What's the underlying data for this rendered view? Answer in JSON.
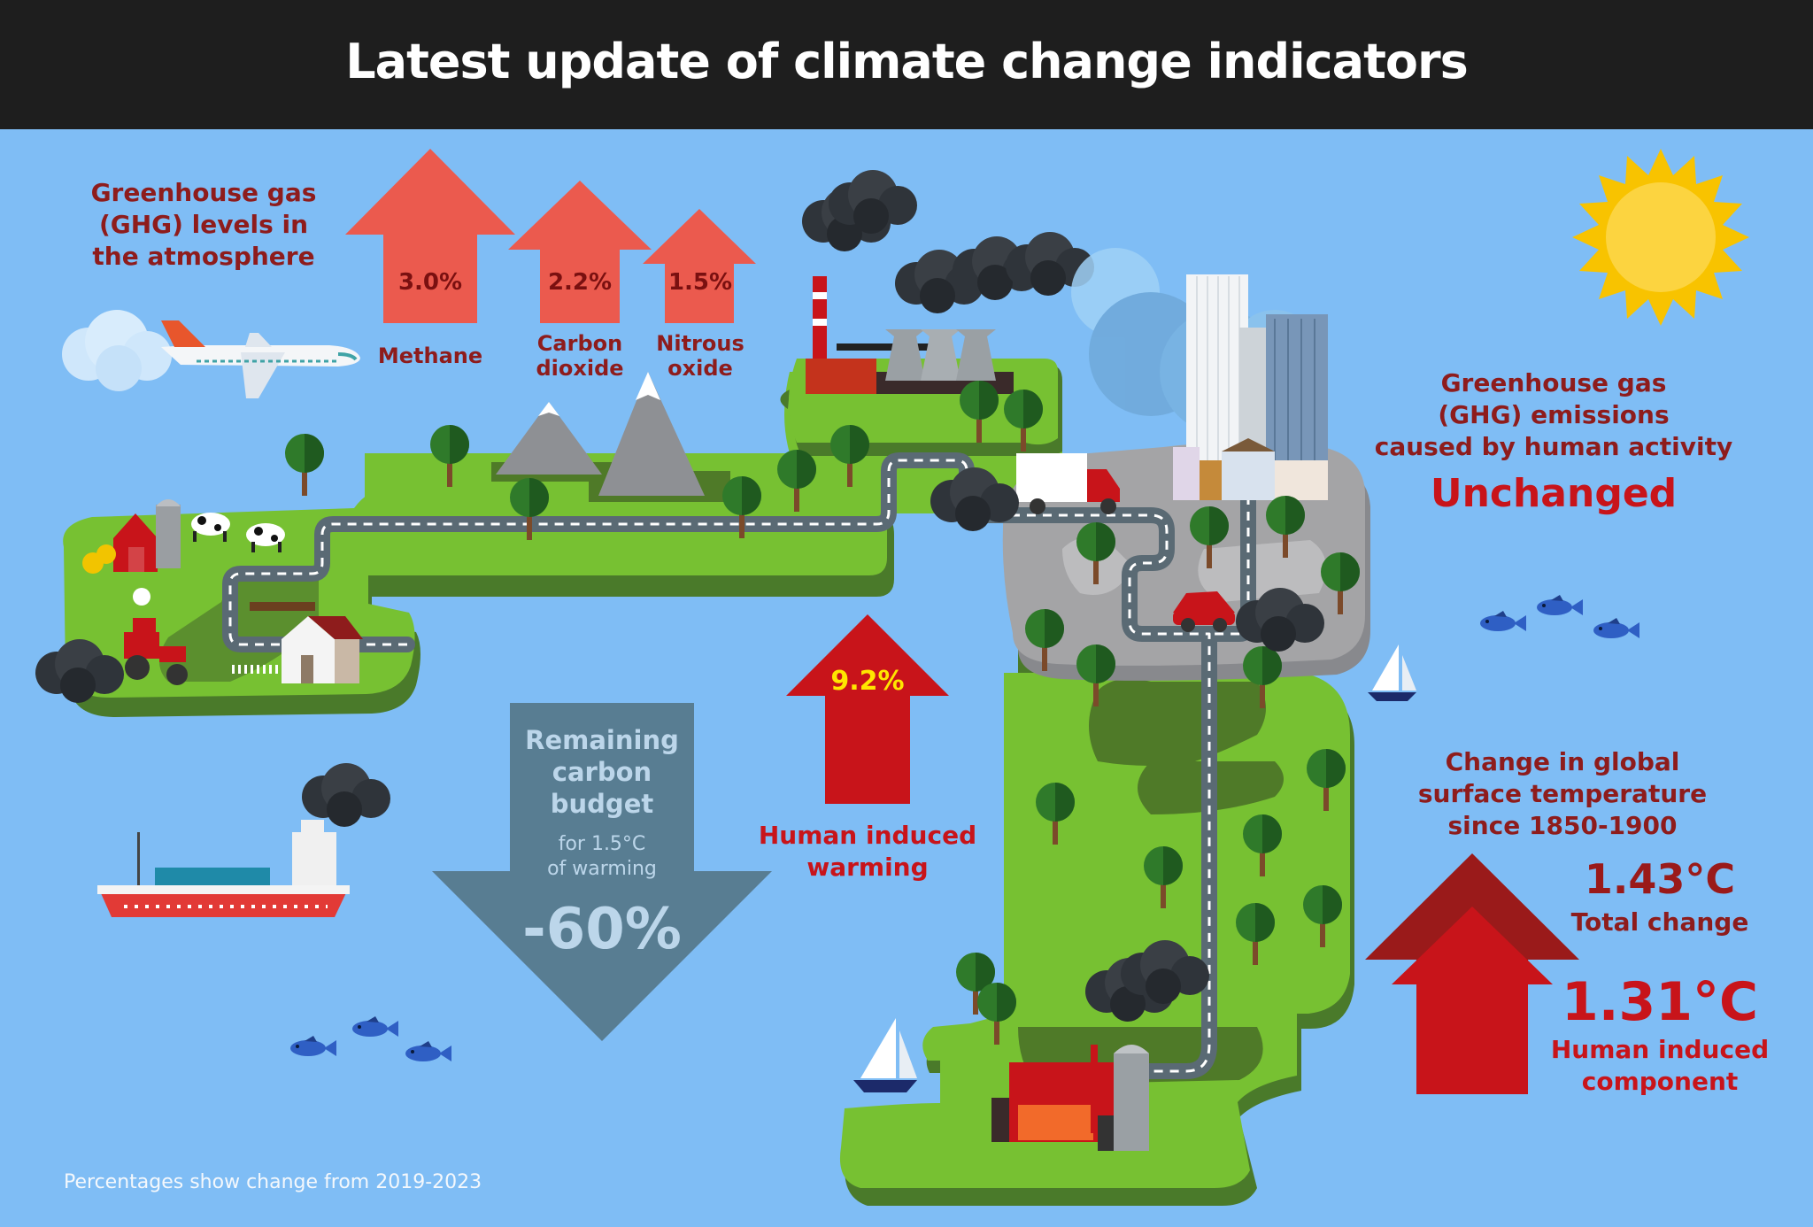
{
  "header": {
    "title": "Latest update of climate change indicators"
  },
  "ghg_levels": {
    "title": "Greenhouse gas\n(GHG) levels in\nthe atmosphere",
    "gases": [
      {
        "name": "Methane",
        "change": "3.0%"
      },
      {
        "name": "Carbon\ndioxide",
        "change": "2.2%"
      },
      {
        "name": "Nitrous\noxide",
        "change": "1.5%"
      }
    ]
  },
  "ghg_emissions": {
    "title": "Greenhouse gas\n(GHG) emissions\ncaused by human activity",
    "status": "Unchanged"
  },
  "carbon_budget": {
    "title": "Remaining\ncarbon\nbudget",
    "subtitle": "for 1.5°C\nof warming",
    "value": "-60%"
  },
  "human_warming": {
    "value": "9.2%",
    "label": "Human induced\nwarming"
  },
  "temperature": {
    "title": "Change in global\nsurface temperature\nsince 1850-1900",
    "total_value": "1.43°C",
    "total_label": "Total change",
    "human_value": "1.31°C",
    "human_label": "Human induced\ncomponent"
  },
  "footnote": "Percentages show change from 2019-2023",
  "colors": {
    "sky": "#7fbdf5",
    "header": "#1e1e1e",
    "land": "#77c132",
    "dark_land": "#4e7a24",
    "road": "#5a6a74",
    "city_ground": "#a4a4a6",
    "level_arrow": "#eb5a4e",
    "warming_arrow": "#c8141a",
    "budget_arrow": "#587d92",
    "text_red": "#8e1c1c",
    "sun": "#fcd440",
    "sun_rays": "#f8c300"
  },
  "icons": [
    "airplane-icon",
    "sun-icon",
    "ship-icon",
    "sailboat-icon",
    "fish-icon",
    "barn-icon",
    "cow-icon",
    "tractor-icon",
    "house-icon",
    "tree-icon",
    "mountain-icon",
    "factory-icon",
    "cooling-tower-icon",
    "truck-icon",
    "car-icon",
    "skyscraper-icon",
    "smoke-cloud-icon"
  ]
}
